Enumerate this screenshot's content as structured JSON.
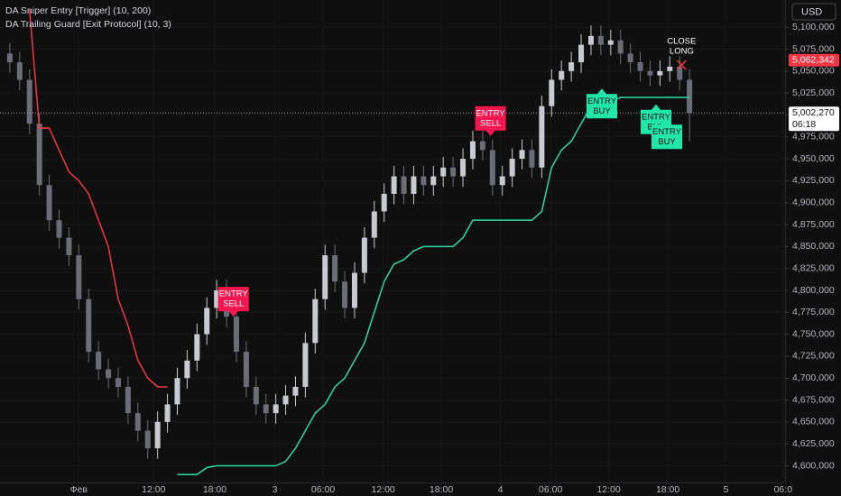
{
  "chart_data": {
    "type": "candlestick",
    "currency": "USD",
    "up_color": "#c8cad1",
    "down_color": "#6a6d78",
    "grid": true,
    "xlim": [
      -8,
      71.7
    ],
    "ylim": [
      4581000,
      5131000
    ],
    "xticks": [
      {
        "value": 0,
        "label": "Фев"
      },
      {
        "value": 7.6,
        "label": "12:00"
      },
      {
        "value": 13.8,
        "label": "18:00"
      },
      {
        "value": 19.9,
        "label": "3"
      },
      {
        "value": 24.8,
        "label": "06:00"
      },
      {
        "value": 30.9,
        "label": "12:00"
      },
      {
        "value": 36.8,
        "label": "18:00"
      },
      {
        "value": 42.8,
        "label": "4"
      },
      {
        "value": 47.9,
        "label": "06:00"
      },
      {
        "value": 53.8,
        "label": "12:00"
      },
      {
        "value": 59.8,
        "label": "18:00"
      },
      {
        "value": 65.7,
        "label": "5"
      },
      {
        "value": 71.5,
        "label": "06:0"
      }
    ],
    "yticks": [
      {
        "value": 4600000,
        "label": "4,600,000"
      },
      {
        "value": 4625000,
        "label": "4,625,000"
      },
      {
        "value": 4650000,
        "label": "4,650,000"
      },
      {
        "value": 4675000,
        "label": "4,675,000"
      },
      {
        "value": 4700000,
        "label": "4,700,000"
      },
      {
        "value": 4725000,
        "label": "4,725,000"
      },
      {
        "value": 4750000,
        "label": "4,750,000"
      },
      {
        "value": 4775000,
        "label": "4,775,000"
      },
      {
        "value": 4800000,
        "label": "4,800,000"
      },
      {
        "value": 4825000,
        "label": "4,825,000"
      },
      {
        "value": 4850000,
        "label": "4,850,000"
      },
      {
        "value": 4875000,
        "label": "4,875,000"
      },
      {
        "value": 4900000,
        "label": "4,900,000"
      },
      {
        "value": 4925000,
        "label": "4,925,000"
      },
      {
        "value": 4950000,
        "label": "4,950,000"
      },
      {
        "value": 4975000,
        "label": "4,975,000"
      },
      {
        "value": 5000000,
        "label": "5,000,000"
      },
      {
        "value": 5025000,
        "label": "5,025,000"
      },
      {
        "value": 5050000,
        "label": "5,050,000"
      },
      {
        "value": 5075000,
        "label": "5,075,000"
      },
      {
        "value": 5100000,
        "label": "5,100,000"
      }
    ],
    "x": [
      -7,
      -6,
      -5,
      -4,
      -3,
      -2,
      -1,
      0,
      1,
      2,
      3,
      4,
      5,
      6,
      7,
      8,
      9,
      10,
      11,
      12,
      13,
      14,
      15,
      16,
      17,
      18,
      19,
      20,
      21,
      22,
      23,
      24,
      25,
      26,
      27,
      28,
      29,
      30,
      31,
      32,
      33,
      34,
      35,
      36,
      37,
      38,
      39,
      40,
      41,
      42,
      43,
      44,
      45,
      46,
      47,
      48,
      49,
      50,
      51,
      52,
      53,
      54,
      55,
      56,
      57,
      58,
      59,
      60,
      61,
      62
    ],
    "open": [
      5070000,
      5060000,
      5040000,
      4990000,
      4920000,
      4880000,
      4860000,
      4840000,
      4790000,
      4730000,
      4710000,
      4700000,
      4690000,
      4660000,
      4640000,
      4620000,
      4650000,
      4670000,
      4700000,
      4720000,
      4750000,
      4780000,
      4800000,
      4770000,
      4730000,
      4690000,
      4670000,
      4660000,
      4670000,
      4680000,
      4690000,
      4740000,
      4790000,
      4840000,
      4810000,
      4780000,
      4820000,
      4860000,
      4890000,
      4910000,
      4930000,
      4910000,
      4930000,
      4920000,
      4930000,
      4940000,
      4930000,
      4950000,
      4970000,
      4960000,
      4920000,
      4930000,
      4950000,
      4960000,
      4940000,
      5010000,
      5040000,
      5050000,
      5060000,
      5080000,
      5090000,
      5080000,
      5085000,
      5070000,
      5060000,
      5050000,
      5045000,
      5050000,
      5055000,
      5040000
    ],
    "high": [
      5082000,
      5072000,
      5052000,
      5002000,
      4932000,
      4892000,
      4872000,
      4852000,
      4802000,
      4742000,
      4722000,
      4712000,
      4702000,
      4672000,
      4652000,
      4662000,
      4682000,
      4712000,
      4732000,
      4762000,
      4792000,
      4812000,
      4812000,
      4782000,
      4742000,
      4702000,
      4682000,
      4682000,
      4692000,
      4702000,
      4752000,
      4802000,
      4852000,
      4852000,
      4822000,
      4832000,
      4872000,
      4902000,
      4922000,
      4942000,
      4942000,
      4942000,
      4942000,
      4942000,
      4952000,
      4952000,
      4962000,
      4982000,
      4982000,
      4972000,
      4942000,
      4962000,
      4972000,
      4972000,
      5022000,
      5052000,
      5062000,
      5072000,
      5092000,
      5102000,
      5102000,
      5097000,
      5097000,
      5082000,
      5072000,
      5062000,
      5062000,
      5067000,
      5067000,
      5052000
    ],
    "low": [
      5048000,
      5028000,
      4978000,
      4908000,
      4868000,
      4848000,
      4828000,
      4778000,
      4718000,
      4698000,
      4688000,
      4678000,
      4648000,
      4628000,
      4608000,
      4608000,
      4638000,
      4658000,
      4688000,
      4708000,
      4738000,
      4768000,
      4758000,
      4718000,
      4678000,
      4658000,
      4648000,
      4648000,
      4658000,
      4668000,
      4678000,
      4728000,
      4778000,
      4798000,
      4768000,
      4768000,
      4808000,
      4848000,
      4878000,
      4898000,
      4898000,
      4898000,
      4908000,
      4908000,
      4918000,
      4918000,
      4918000,
      4938000,
      4948000,
      4908000,
      4908000,
      4918000,
      4938000,
      4928000,
      4928000,
      4998000,
      5028000,
      5038000,
      5048000,
      5068000,
      5068000,
      5068000,
      5058000,
      5048000,
      5038000,
      5033000,
      5033000,
      5038000,
      5028000,
      4970000
    ],
    "close": [
      5060000,
      5040000,
      4990000,
      4920000,
      4880000,
      4860000,
      4840000,
      4790000,
      4730000,
      4710000,
      4700000,
      4690000,
      4660000,
      4640000,
      4620000,
      4650000,
      4670000,
      4700000,
      4720000,
      4750000,
      4780000,
      4800000,
      4770000,
      4730000,
      4690000,
      4670000,
      4660000,
      4670000,
      4680000,
      4690000,
      4740000,
      4790000,
      4840000,
      4810000,
      4780000,
      4820000,
      4860000,
      4890000,
      4910000,
      4930000,
      4910000,
      4930000,
      4920000,
      4930000,
      4940000,
      4930000,
      4950000,
      4970000,
      4960000,
      4920000,
      4930000,
      4950000,
      4960000,
      4940000,
      5010000,
      5040000,
      5050000,
      5060000,
      5080000,
      5090000,
      5080000,
      5085000,
      5070000,
      5060000,
      5050000,
      5045000,
      5050000,
      5055000,
      5040000,
      5002270
    ],
    "series": [
      {
        "name": "DA Sniper Entry [Trigger] (10, 200)",
        "color": "#f23645",
        "values": [
          null,
          null,
          5120000,
          4985000,
          4985000,
          4960000,
          4935000,
          4925000,
          4910000,
          4880000,
          4850000,
          4790000,
          4760000,
          4720000,
          4700000,
          4690000,
          4690000,
          null,
          null,
          null,
          null,
          null,
          null,
          null,
          null,
          null,
          null,
          null,
          null,
          null,
          null,
          null,
          null,
          null,
          null,
          null,
          null,
          null,
          null,
          null,
          null,
          null,
          null,
          null,
          null,
          null,
          null,
          null,
          null,
          null,
          null,
          null,
          null,
          null,
          null,
          null,
          null,
          null,
          null,
          null,
          null,
          null,
          null,
          null,
          null,
          null,
          null,
          null,
          null,
          null
        ]
      },
      {
        "name": "DA Trailing Guard [Exit Protocol] (10, 3)",
        "color": "#2ed8a7",
        "values": [
          null,
          null,
          null,
          null,
          null,
          null,
          null,
          null,
          null,
          null,
          null,
          null,
          null,
          null,
          null,
          null,
          null,
          4590000,
          4590000,
          4590000,
          4598000,
          4600000,
          4600000,
          4600000,
          4600000,
          4600000,
          4600000,
          4600000,
          4605000,
          4620000,
          4640000,
          4660000,
          4670000,
          4690000,
          4700000,
          4720000,
          4740000,
          4775000,
          4810000,
          4830000,
          4835000,
          4845000,
          4850000,
          4850000,
          4850000,
          4850000,
          4860000,
          4880000,
          4880000,
          4880000,
          4880000,
          4880000,
          4880000,
          4880000,
          4890000,
          4940000,
          4960000,
          4970000,
          4990000,
          5010000,
          5010000,
          5015000,
          5020000,
          5020000,
          5020000,
          5020000,
          5020000,
          5020000,
          5020000,
          5020000
        ]
      }
    ],
    "annotations": [
      {
        "lines": [
          "ENTRY",
          "SELL"
        ],
        "x": 15.7,
        "y": 4770000,
        "position": "above",
        "color": "#f7164f",
        "box": true
      },
      {
        "lines": [
          "ENTRY",
          "SELL"
        ],
        "x": 41.8,
        "y": 4976000,
        "position": "above",
        "color": "#f7164f",
        "box": true
      },
      {
        "lines": [
          "ENTRY",
          "BUY"
        ],
        "x": 53.1,
        "y": 5030000,
        "position": "below",
        "color": "#22e6a8",
        "box": true
      },
      {
        "lines": [
          "ENTRY",
          "BUY"
        ],
        "x": 58.6,
        "y": 5012000,
        "position": "below",
        "color": "#22e6a8",
        "box": true
      },
      {
        "lines": [
          "ENTRY",
          "BUY"
        ],
        "x": 59.7,
        "y": 4995000,
        "position": "below",
        "color": "#22e6a8",
        "box": true
      },
      {
        "lines": [
          "CLOSE",
          "LONG"
        ],
        "x": 61.2,
        "y": 5057000,
        "position": "above",
        "color": "#f23645",
        "box": false
      }
    ],
    "price_labels": [
      {
        "value": 5062342,
        "label": "5,062,342",
        "color": "#f23645"
      },
      {
        "value": 5002270,
        "label": "5,002,270",
        "color": "#ffffff",
        "countdown": "06:18"
      }
    ]
  }
}
